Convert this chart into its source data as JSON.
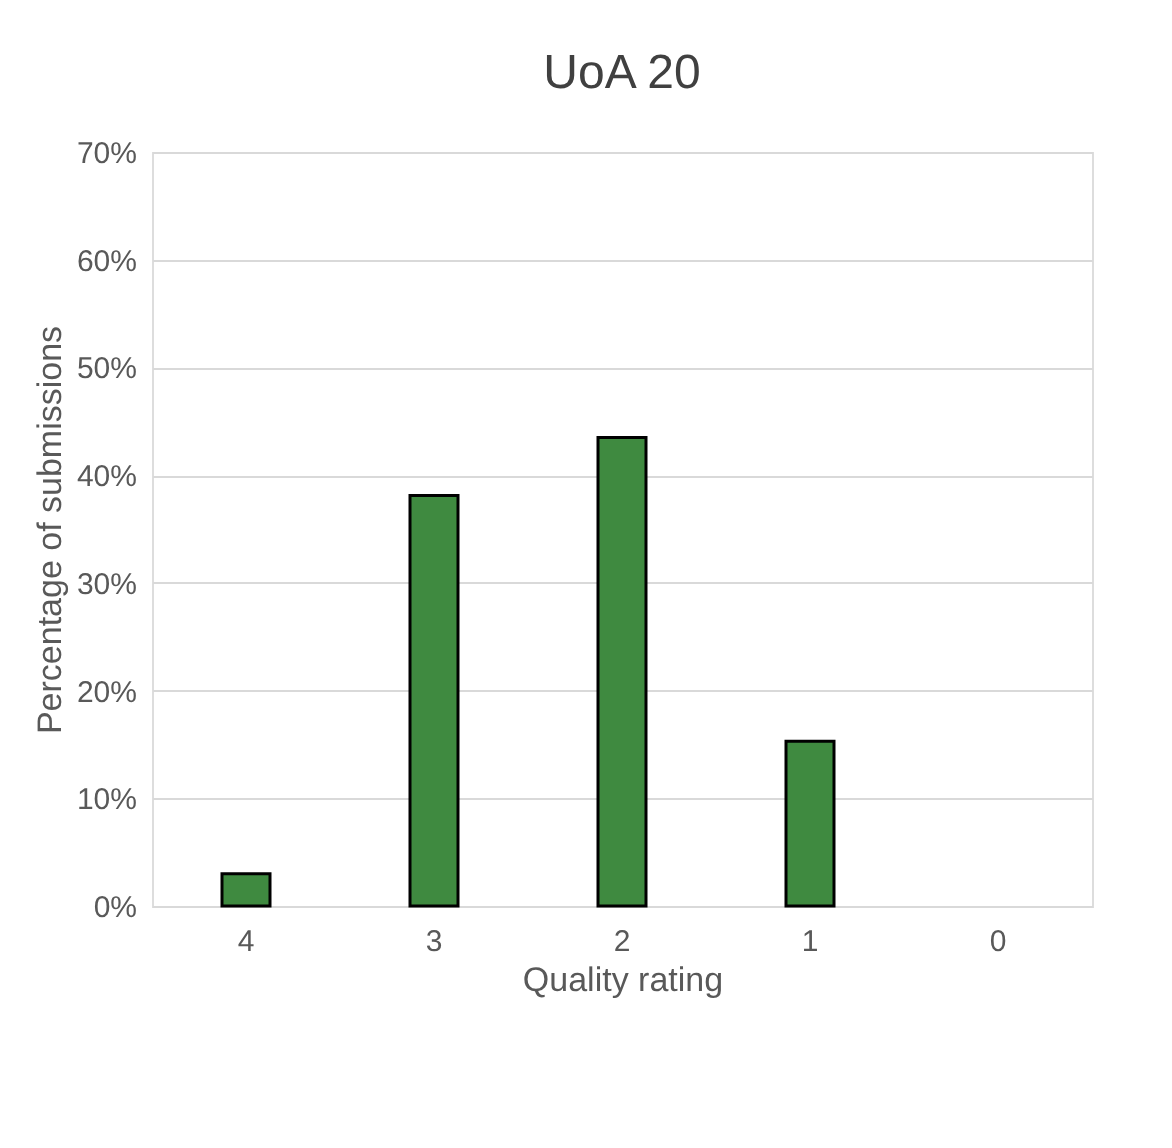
{
  "chart_data": {
    "type": "bar",
    "title": "UoA 20",
    "xlabel": "Quality rating",
    "ylabel": "Percentage of submissions",
    "categories": [
      "4",
      "3",
      "2",
      "1",
      "0"
    ],
    "values": [
      3.0,
      38.1,
      43.5,
      15.3,
      0
    ],
    "color": "#3f8a40",
    "ylim": [
      0,
      70
    ],
    "yticks": [
      {
        "value": 0,
        "label": "0%"
      },
      {
        "value": 10,
        "label": "10%"
      },
      {
        "value": 20,
        "label": "20%"
      },
      {
        "value": 30,
        "label": "30%"
      },
      {
        "value": 40,
        "label": "40%"
      },
      {
        "value": 50,
        "label": "50%"
      },
      {
        "value": 60,
        "label": "60%"
      },
      {
        "value": 70,
        "label": "70%"
      }
    ],
    "grid": "y"
  }
}
